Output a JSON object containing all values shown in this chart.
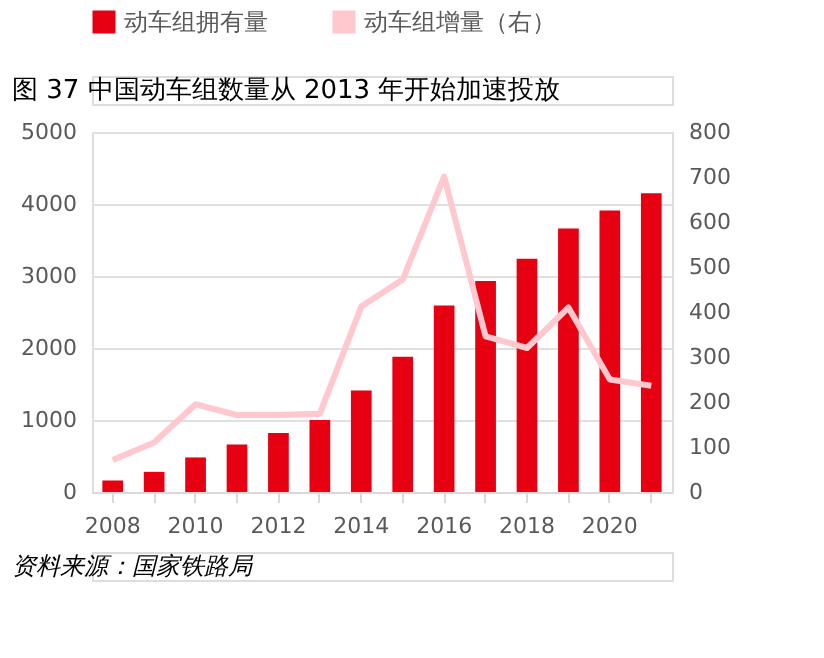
{
  "chart_data": {
    "type": "bar",
    "title": "图 37 中国动车组数量从 2013 年开始加速投放",
    "categories": [
      "2008",
      null,
      "2010",
      null,
      "2012",
      null,
      "2014",
      null,
      "2016",
      null,
      "2018",
      null,
      "2020",
      null
    ],
    "series": [
      {
        "name": "动车组拥有量",
        "color": "#e60012",
        "values": [
          160,
          280,
          480,
          660,
          820,
          1000,
          1410,
          1880,
          2590,
          2930,
          3240,
          3660,
          3910,
          4150
        ]
      },
      {
        "name": "动车组增量（右）",
        "type": "line",
        "axis": "y2",
        "color": "#ffc7ce",
        "values": [
          71,
          110,
          195,
          171,
          171,
          174,
          412,
          472,
          701,
          346,
          320,
          410,
          250,
          236
        ]
      }
    ],
    "ylim": [
      0,
      5000
    ],
    "yticks": [
      0,
      1000,
      2000,
      3000,
      4000,
      5000
    ],
    "y2lim": [
      0,
      800
    ],
    "y2ticks": [
      0,
      100,
      200,
      300,
      400,
      500,
      600,
      700,
      800
    ],
    "grid": "y",
    "legend": "top",
    "annotations": [
      "资料来源：国家铁路局"
    ]
  }
}
